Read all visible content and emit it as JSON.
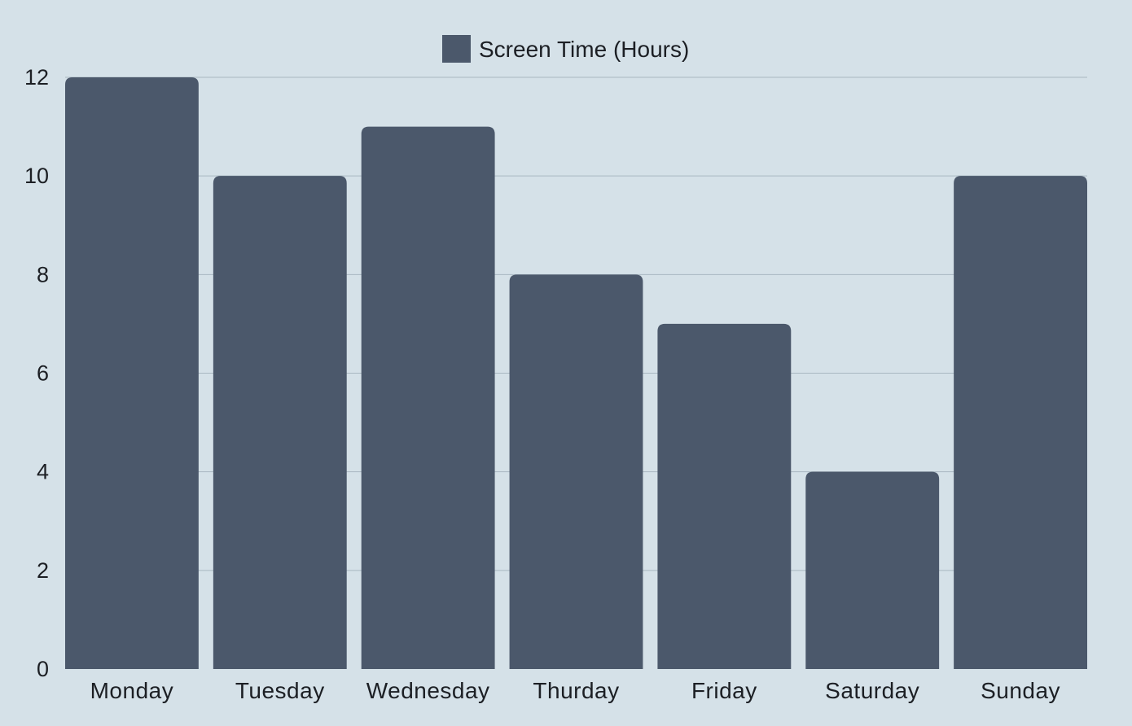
{
  "chart_data": {
    "type": "bar",
    "title": "",
    "xlabel": "",
    "ylabel": "",
    "categories": [
      "Monday",
      "Tuesday",
      "Wednesday",
      "Thurday",
      "Friday",
      "Saturday",
      "Sunday"
    ],
    "series": [
      {
        "name": "Screen Time (Hours)",
        "values": [
          12,
          10,
          11,
          8,
          7,
          4,
          10
        ],
        "color": "#4b586b"
      }
    ],
    "ylim": [
      0,
      12
    ],
    "yticks": [
      0,
      2,
      4,
      6,
      8,
      10,
      12
    ],
    "grid": true,
    "legend": "top-center"
  },
  "colors": {
    "background": "#d5e1e8",
    "gridline": "#a9b7c1",
    "text": "#1c1f24"
  }
}
